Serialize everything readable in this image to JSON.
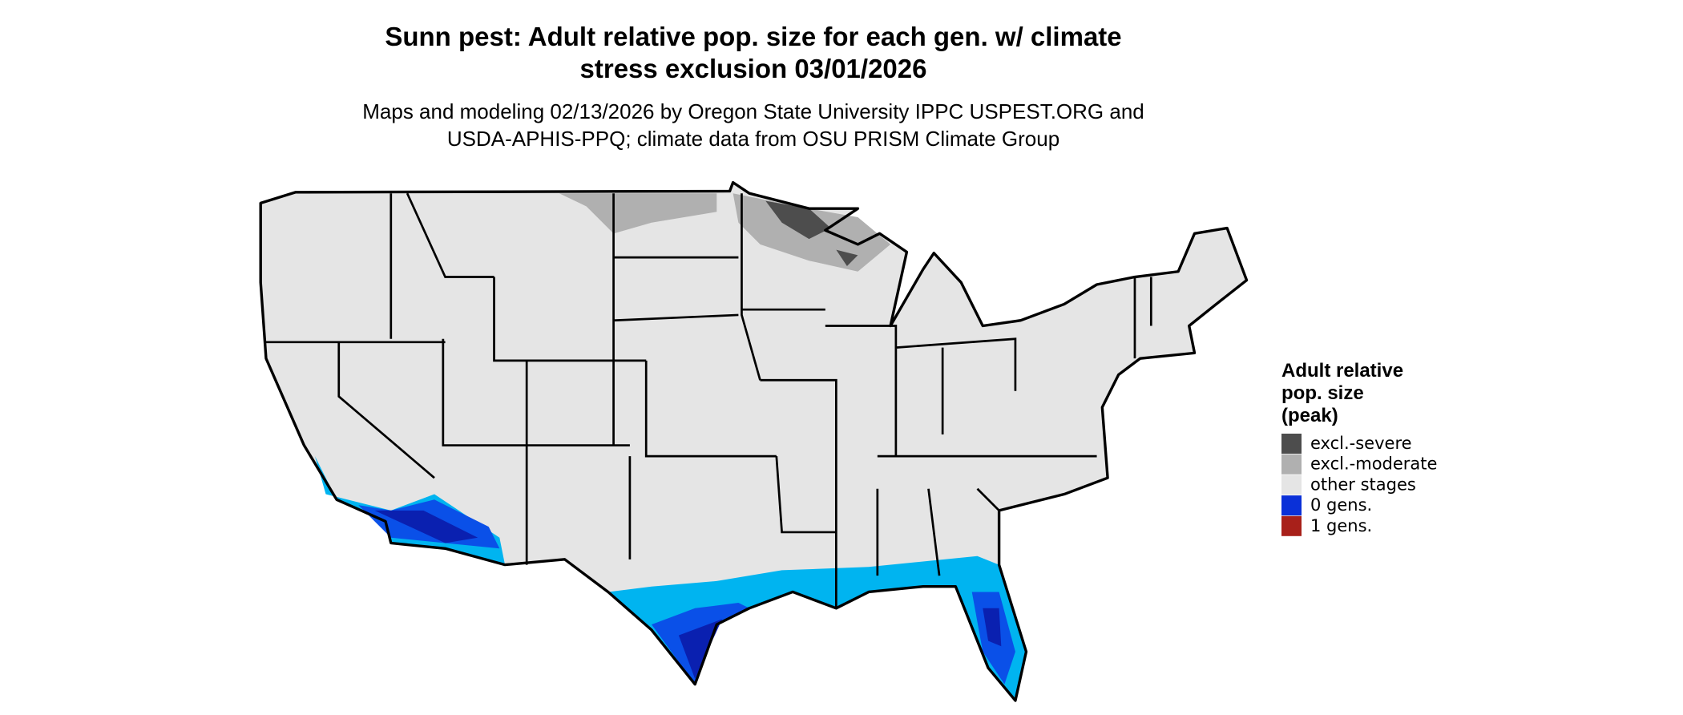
{
  "title": [
    "Sunn pest: Adult relative pop. size for each gen. w/ climate",
    "stress exclusion 03/01/2026"
  ],
  "subtitle": [
    "Maps and modeling 02/13/2026 by Oregon State University IPPC USPEST.ORG and",
    "USDA-APHIS-PPQ; climate data from OSU PRISM Climate Group"
  ],
  "legend": {
    "title": [
      "Adult relative",
      "pop. size",
      "(peak)"
    ],
    "items": [
      {
        "label": "excl.-severe",
        "color": "#4d4d4d"
      },
      {
        "label": "excl.-moderate",
        "color": "#b0b0b0"
      },
      {
        "label": "other stages",
        "color": "#e5e5e5"
      },
      {
        "label": "0 gens.",
        "color": "#0a30d8"
      },
      {
        "label": "1 gens.",
        "color": "#a8201a"
      }
    ]
  }
}
